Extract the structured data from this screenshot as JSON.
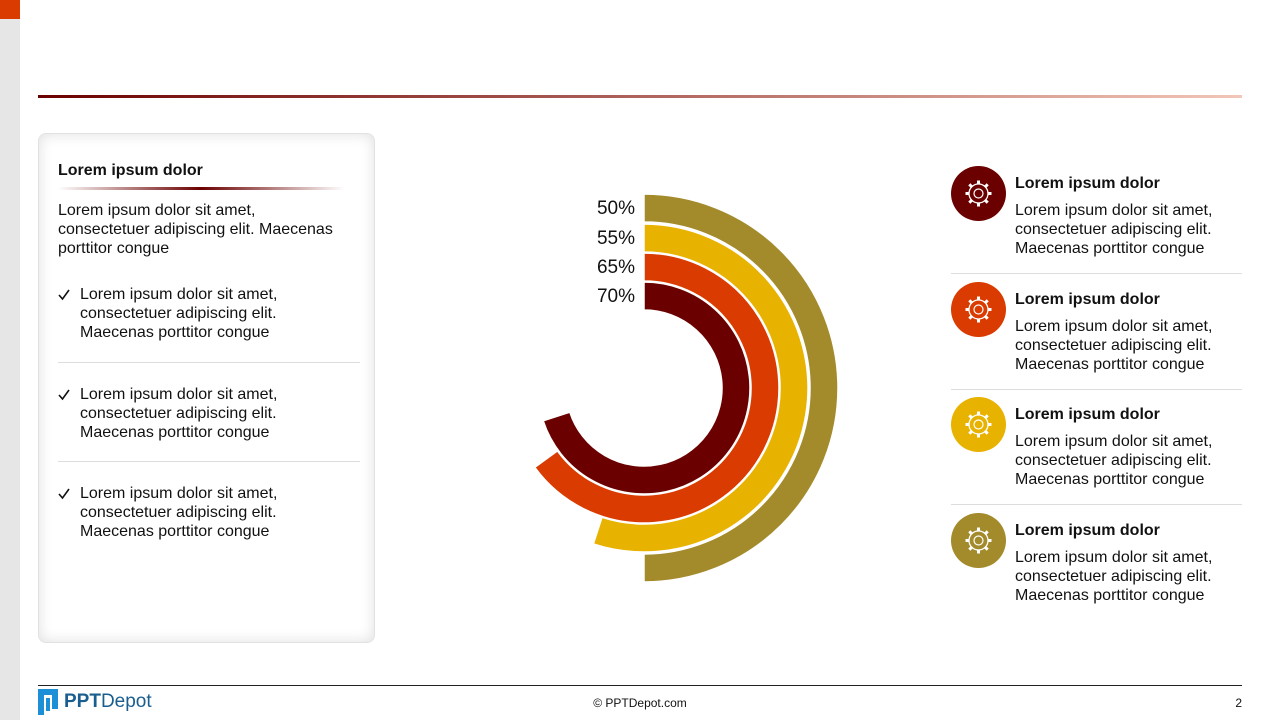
{
  "chart_data": {
    "type": "radial_bar",
    "values": [
      50,
      55,
      65,
      70
    ],
    "value_labels": [
      "50%",
      "55%",
      "65%",
      "70%"
    ],
    "colors": [
      "#a38a2a",
      "#e8b200",
      "#d93b00",
      "#6b0000"
    ],
    "rlim": [
      0,
      100
    ]
  },
  "left_panel": {
    "title": "Lorem ipsum dolor",
    "intro": "Lorem ipsum dolor sit amet, consectetuer adipiscing elit. Maecenas porttitor congue",
    "bullets": [
      "Lorem ipsum dolor sit amet, consectetuer adipiscing elit. Maecenas porttitor congue",
      "Lorem ipsum dolor sit amet, consectetuer adipiscing elit. Maecenas porttitor congue",
      "Lorem ipsum dolor sit amet, consectetuer adipiscing elit. Maecenas porttitor congue"
    ]
  },
  "items": [
    {
      "title": "Lorem ipsum dolor",
      "text": "Lorem ipsum dolor sit amet, consectetuer adipiscing elit. Maecenas porttitor congue"
    },
    {
      "title": "Lorem ipsum dolor",
      "text": "Lorem ipsum dolor sit amet, consectetuer adipiscing elit. Maecenas porttitor congue"
    },
    {
      "title": "Lorem ipsum dolor",
      "text": "Lorem ipsum dolor sit amet, consectetuer adipiscing elit. Maecenas porttitor congue"
    },
    {
      "title": "Lorem ipsum dolor",
      "text": "Lorem ipsum dolor sit amet, consectetuer adipiscing elit. Maecenas porttitor congue"
    }
  ],
  "footer": {
    "logo_bold": "PPT",
    "logo_rest": "Depot",
    "copyright": "© PPTDepot.com",
    "page": "2"
  }
}
